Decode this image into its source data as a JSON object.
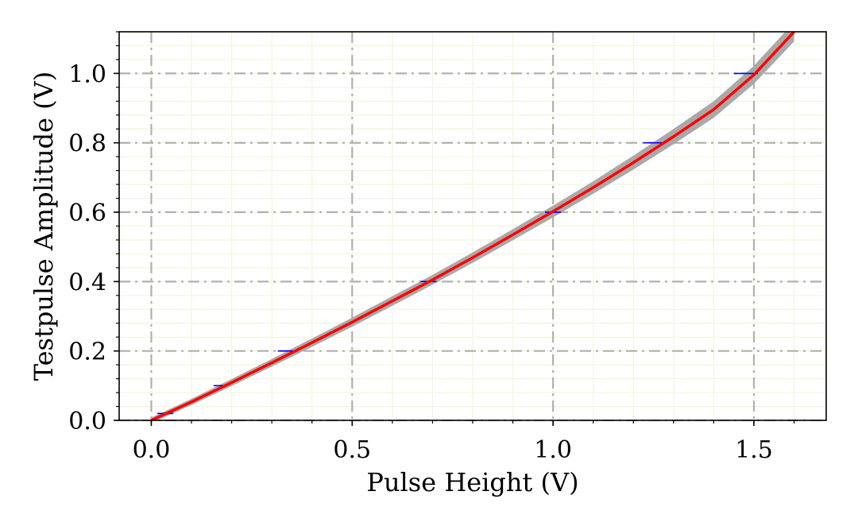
{
  "chart_data": {
    "type": "line",
    "title": "",
    "xlabel": "Pulse Height (V)",
    "ylabel": "Testpulse Amplitude (V)",
    "xlim": [
      -0.08,
      1.68
    ],
    "ylim": [
      0.0,
      1.12
    ],
    "x_ticks": [
      0.0,
      0.5,
      1.0,
      1.5
    ],
    "x_tick_labels": [
      "0.0",
      "0.5",
      "1.0",
      "1.5"
    ],
    "y_ticks": [
      0.0,
      0.2,
      0.4,
      0.6,
      0.8,
      1.0
    ],
    "y_tick_labels": [
      "0.0",
      "0.2",
      "0.4",
      "0.6",
      "0.8",
      "1.0"
    ],
    "x_minor_step": 0.1,
    "y_minor_step": 0.04,
    "grid": true,
    "legend": "none",
    "series": [
      {
        "kind": "fit",
        "color": "#ff0000",
        "x": [
          0.0,
          0.1,
          0.2,
          0.3,
          0.4,
          0.5,
          0.6,
          0.7,
          0.8,
          0.9,
          1.0,
          1.1,
          1.2,
          1.3,
          1.4,
          1.5,
          1.6
        ],
        "y": [
          0.0,
          0.053,
          0.109,
          0.166,
          0.224,
          0.283,
          0.344,
          0.405,
          0.469,
          0.535,
          0.602,
          0.671,
          0.743,
          0.818,
          0.896,
          0.996,
          1.12
        ]
      },
      {
        "kind": "uncertainty-band",
        "color": "#a9a9a9",
        "x": [
          0.0,
          0.1,
          0.2,
          0.3,
          0.4,
          0.5,
          0.6,
          0.7,
          0.8,
          0.9,
          1.0,
          1.1,
          1.2,
          1.3,
          1.4,
          1.5,
          1.6
        ],
        "halfwidth": [
          0.008,
          0.009,
          0.01,
          0.011,
          0.012,
          0.013,
          0.014,
          0.014,
          0.015,
          0.016,
          0.017,
          0.018,
          0.02,
          0.022,
          0.024,
          0.026,
          0.028
        ]
      },
      {
        "kind": "measurements",
        "color": "#0000ff",
        "x": [
          0.035,
          0.17,
          0.34,
          0.69,
          1.0,
          1.25,
          1.48
        ],
        "y": [
          0.02,
          0.1,
          0.2,
          0.4,
          0.6,
          0.8,
          1.0
        ],
        "xerr": [
          0.02,
          0.015,
          0.025,
          0.02,
          0.02,
          0.025,
          0.03
        ]
      }
    ],
    "colors": {
      "major_grid": "#b0b0b0",
      "minor_grid": "#f3f5dc",
      "axes": "#000000"
    }
  }
}
